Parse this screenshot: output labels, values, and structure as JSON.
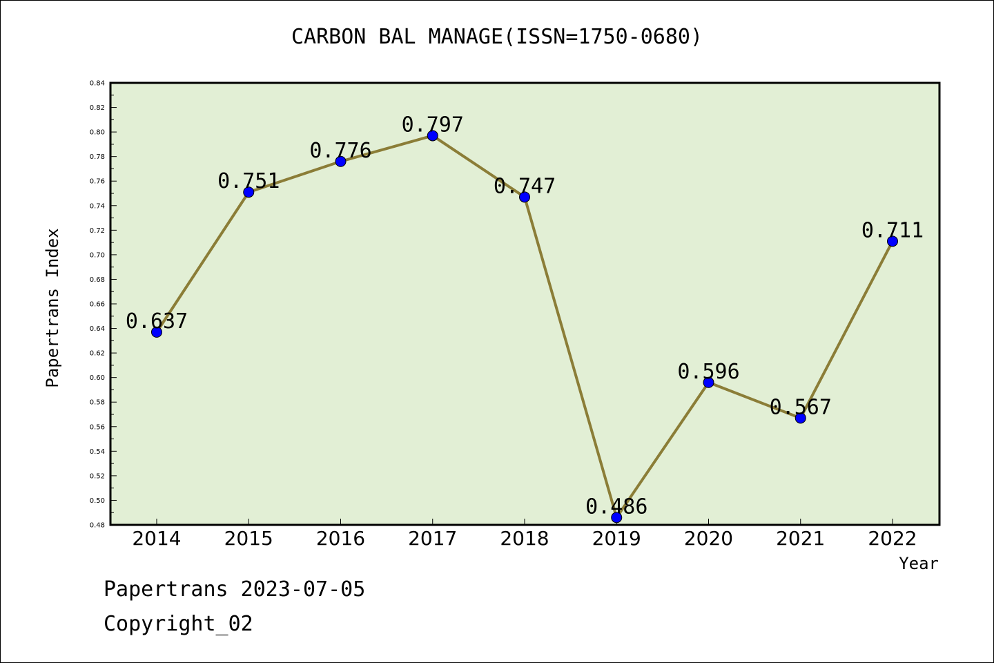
{
  "chart_data": {
    "type": "line",
    "title": "CARBON BAL MANAGE(ISSN=1750-0680)",
    "xlabel": "Year",
    "ylabel": "Papertrans Index",
    "categories": [
      "2014",
      "2015",
      "2016",
      "2017",
      "2018",
      "2019",
      "2020",
      "2021",
      "2022"
    ],
    "series": [
      {
        "values": [
          0.637,
          0.751,
          0.776,
          0.797,
          0.747,
          0.486,
          0.596,
          0.567,
          0.711
        ]
      }
    ],
    "data_labels": [
      "0.637",
      "0.751",
      "0.776",
      "0.797",
      "0.747",
      "0.486",
      "0.596",
      "0.567",
      "0.711"
    ],
    "ylim": [
      0.48,
      0.84
    ],
    "yticks": [
      "0.48",
      "0.50",
      "0.52",
      "0.54",
      "0.56",
      "0.58",
      "0.60",
      "0.62",
      "0.64",
      "0.66",
      "0.68",
      "0.70",
      "0.72",
      "0.74",
      "0.76",
      "0.78",
      "0.80",
      "0.82",
      "0.84"
    ],
    "grid": false,
    "colors": {
      "plot_background": "#e2efd5",
      "line": "#8b7d37",
      "marker": "#0000ff"
    }
  },
  "footer": {
    "line1": "Papertrans 2023-07-05",
    "line2": "Copyright_02"
  }
}
